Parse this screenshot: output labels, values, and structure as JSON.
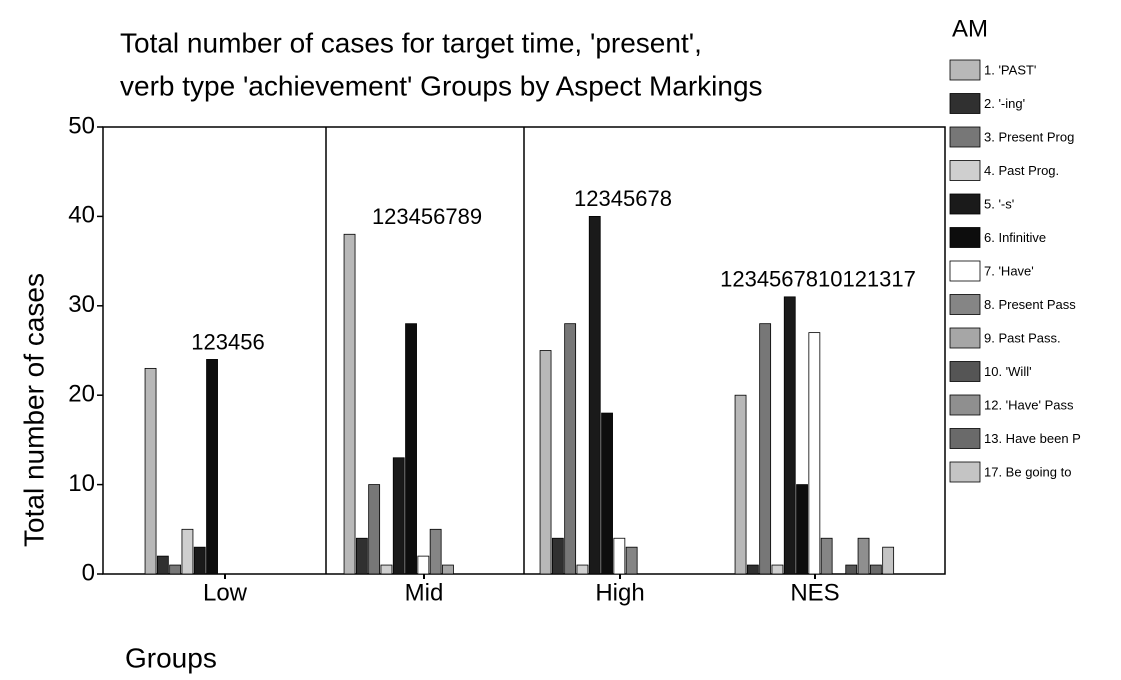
{
  "chart_data": {
    "type": "bar",
    "title": [
      "Total number of cases for target time, 'present',",
      "verb type 'achievement' Groups by Aspect Markings"
    ],
    "x_label": "Groups",
    "y_label": "Total number of cases",
    "legend_title": "AM",
    "categories": [
      "Low",
      "Mid",
      "High",
      "NES"
    ],
    "annotations": [
      "123456",
      "123456789",
      "12345678",
      "1234567810121317"
    ],
    "ylim": [
      0,
      50
    ],
    "yticks": [
      0,
      10,
      20,
      30,
      40,
      50
    ],
    "grid": false,
    "legend": "right",
    "series": [
      {
        "name": "1. 'PAST'",
        "color": "#b8b8b8",
        "values": [
          23,
          38,
          25,
          20
        ]
      },
      {
        "name": "2. '-ing'",
        "color": "#303030",
        "values": [
          2,
          4,
          4,
          1
        ]
      },
      {
        "name": "3. Present Prog",
        "color": "#777777",
        "values": [
          1,
          10,
          28,
          28
        ]
      },
      {
        "name": "4. Past Prog.",
        "color": "#cfcfcf",
        "values": [
          5,
          1,
          1,
          1
        ]
      },
      {
        "name": "5. '-s'",
        "color": "#1a1a1a",
        "values": [
          3,
          13,
          40,
          31
        ]
      },
      {
        "name": "6. Infinitive",
        "color": "#0d0d0d",
        "values": [
          24,
          28,
          18,
          10
        ]
      },
      {
        "name": "7. 'Have'",
        "color": "#ffffff",
        "values": [
          null,
          2,
          4,
          27
        ]
      },
      {
        "name": "8. Present Pass",
        "color": "#858585",
        "values": [
          null,
          5,
          3,
          4
        ]
      },
      {
        "name": "9. Past Pass.",
        "color": "#a6a6a6",
        "values": [
          null,
          1,
          null,
          null
        ]
      },
      {
        "name": "10. 'Will'",
        "color": "#555555",
        "values": [
          null,
          null,
          null,
          1
        ]
      },
      {
        "name": "12. 'Have' Pass",
        "color": "#8f8f8f",
        "values": [
          null,
          null,
          null,
          4
        ]
      },
      {
        "name": "13. Have been P",
        "color": "#6a6a6a",
        "values": [
          null,
          null,
          null,
          1
        ]
      },
      {
        "name": "17. Be going to",
        "color": "#c4c4c4",
        "values": [
          null,
          null,
          null,
          3
        ]
      }
    ]
  }
}
